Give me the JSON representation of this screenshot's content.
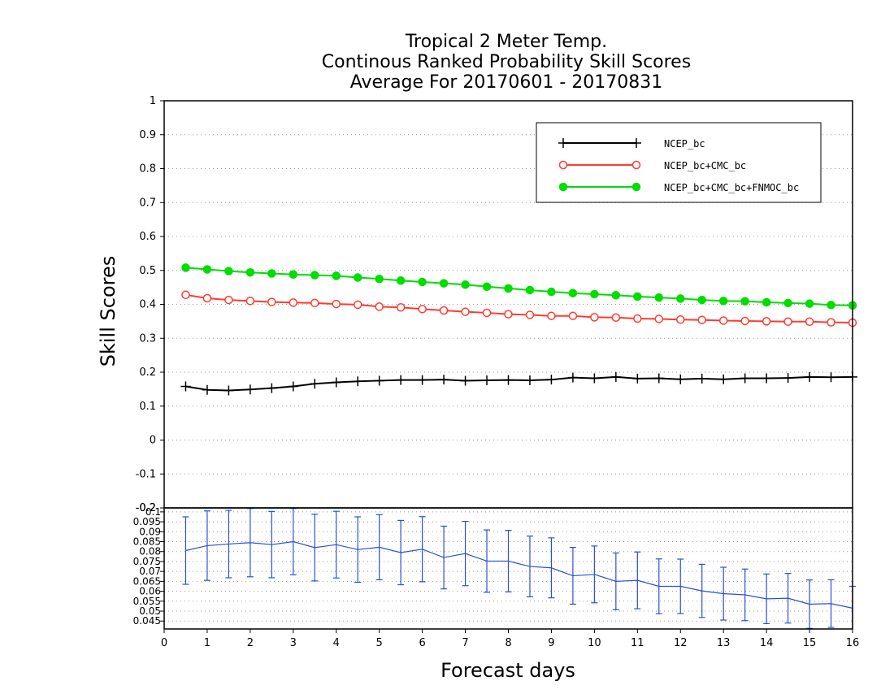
{
  "title": {
    "line1": "Tropical 2 Meter Temp.",
    "line2": "Continous Ranked Probability Skill Scores",
    "line3": "Average For 20170601 - 20170831"
  },
  "colors": {
    "ncep": "#000000",
    "ncep_cmc": "#ff3b30",
    "ncep_cmc_fnmoc": "#00dd00",
    "diff": "#2a4fd8"
  },
  "chart_data": [
    {
      "type": "line",
      "title": "Tropical 2 Meter Temp. Continous Ranked Probability Skill Scores Average For 20170601 - 20170831",
      "xlabel": "Forecast days",
      "ylabel": "Skill Scores",
      "xlim": [
        0,
        16
      ],
      "ylim": [
        -0.2,
        1
      ],
      "yticks": [
        "-0.2",
        "-0.1",
        "0",
        "0.1",
        "0.2",
        "0.3",
        "0.4",
        "0.5",
        "0.6",
        "0.7",
        "0.8",
        "0.9",
        "1"
      ],
      "grid": true,
      "legend_position": "top-right",
      "x": [
        0.5,
        1,
        1.5,
        2,
        2.5,
        3,
        3.5,
        4,
        4.5,
        5,
        5.5,
        6,
        6.5,
        7,
        7.5,
        8,
        8.5,
        9,
        9.5,
        10,
        10.5,
        11,
        11.5,
        12,
        12.5,
        13,
        13.5,
        14,
        14.5,
        15,
        15.5,
        16
      ],
      "series": [
        {
          "name": "NCEP_bc",
          "marker": "plus",
          "values": [
            0.158,
            0.148,
            0.146,
            0.149,
            0.153,
            0.158,
            0.166,
            0.17,
            0.173,
            0.175,
            0.177,
            0.177,
            0.178,
            0.175,
            0.176,
            0.177,
            0.176,
            0.178,
            0.184,
            0.182,
            0.186,
            0.181,
            0.182,
            0.179,
            0.181,
            0.179,
            0.182,
            0.182,
            0.183,
            0.186,
            0.185,
            0.186
          ]
        },
        {
          "name": "NCEP_bc+CMC_bc",
          "marker": "open-circle",
          "values": [
            0.428,
            0.418,
            0.413,
            0.41,
            0.407,
            0.405,
            0.404,
            0.401,
            0.399,
            0.393,
            0.391,
            0.386,
            0.382,
            0.378,
            0.375,
            0.371,
            0.369,
            0.366,
            0.366,
            0.362,
            0.361,
            0.358,
            0.357,
            0.355,
            0.354,
            0.352,
            0.351,
            0.35,
            0.349,
            0.349,
            0.347,
            0.346
          ]
        },
        {
          "name": "NCEP_bc+CMC_bc+FNMOC_bc",
          "marker": "filled-circle",
          "values": [
            0.508,
            0.503,
            0.498,
            0.494,
            0.491,
            0.488,
            0.486,
            0.484,
            0.479,
            0.475,
            0.47,
            0.466,
            0.462,
            0.458,
            0.452,
            0.447,
            0.442,
            0.437,
            0.433,
            0.43,
            0.427,
            0.423,
            0.42,
            0.417,
            0.413,
            0.41,
            0.409,
            0.406,
            0.404,
            0.402,
            0.398,
            0.397
          ]
        }
      ]
    },
    {
      "type": "line",
      "xlabel": "Forecast days",
      "xlim": [
        0,
        16
      ],
      "xticks": [
        "0",
        "1",
        "2",
        "3",
        "4",
        "5",
        "6",
        "7",
        "8",
        "9",
        "10",
        "11",
        "12",
        "13",
        "14",
        "15",
        "16"
      ],
      "ylim": [
        0.041,
        0.102
      ],
      "yticks": [
        "0.045",
        "0.05",
        "0.055",
        "0.06",
        "0.065",
        "0.07",
        "0.075",
        "0.08",
        "0.085",
        "0.09",
        "0.095",
        "0.1"
      ],
      "grid": true,
      "x": [
        0.5,
        1,
        1.5,
        2,
        2.5,
        3,
        3.5,
        4,
        4.5,
        5,
        5.5,
        6,
        6.5,
        7,
        7.5,
        8,
        8.5,
        9,
        9.5,
        10,
        10.5,
        11,
        11.5,
        12,
        12.5,
        13,
        13.5,
        14,
        14.5,
        15,
        15.5,
        16
      ],
      "series": [
        {
          "values": [
            0.0805,
            0.083,
            0.0838,
            0.0845,
            0.0835,
            0.085,
            0.082,
            0.0835,
            0.081,
            0.0822,
            0.0795,
            0.0812,
            0.077,
            0.079,
            0.0752,
            0.0752,
            0.0725,
            0.0718,
            0.0678,
            0.0685,
            0.065,
            0.0655,
            0.0625,
            0.0625,
            0.0602,
            0.0588,
            0.0582,
            0.0562,
            0.0565,
            0.0535,
            0.0538,
            0.0515
          ],
          "lower": [
            0.0635,
            0.0655,
            0.0668,
            0.0673,
            0.0668,
            0.0683,
            0.0652,
            0.0667,
            0.0645,
            0.0658,
            0.0633,
            0.0648,
            0.0612,
            0.0628,
            0.0595,
            0.0597,
            0.0572,
            0.0567,
            0.0535,
            0.0542,
            0.0507,
            0.0512,
            0.0487,
            0.0488,
            0.0468,
            0.0455,
            0.0452,
            0.0437,
            0.044,
            0.0413,
            0.0418,
            null
          ],
          "upper": [
            0.0975,
            0.1005,
            0.1008,
            0.1017,
            0.1002,
            0.1017,
            0.0988,
            0.1003,
            0.0975,
            0.0986,
            0.0957,
            0.0976,
            0.0928,
            0.0952,
            0.0909,
            0.0907,
            0.0878,
            0.0869,
            0.0821,
            0.0828,
            0.0793,
            0.0798,
            0.0763,
            0.0762,
            0.0736,
            0.0721,
            0.0712,
            0.0687,
            0.069,
            0.0657,
            0.0658,
            0.0625
          ]
        }
      ]
    }
  ]
}
